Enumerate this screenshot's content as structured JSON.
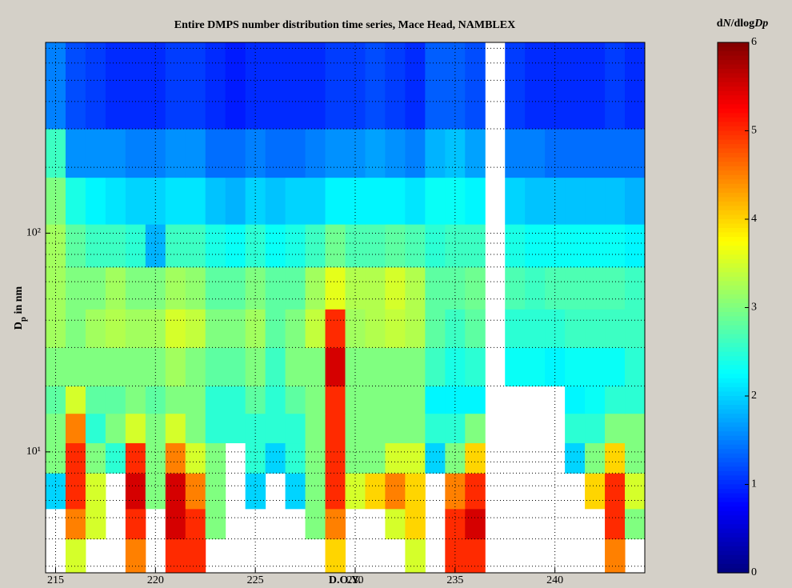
{
  "chart_data": {
    "type": "heatmap",
    "title": "Entire DMPS number distribution time series, Mace Head, NAMBLEX",
    "xlabel": "D.O.Y.",
    "ylabel": [
      "D",
      "p",
      " in nm"
    ],
    "colorbar_label": [
      "d",
      "N",
      "/dlog",
      "Dp"
    ],
    "x": [
      215,
      216,
      217,
      218,
      219,
      220,
      221,
      222,
      223,
      224,
      225,
      226,
      227,
      228,
      229,
      230,
      231,
      232,
      233,
      234,
      235,
      236,
      237,
      238,
      239,
      240,
      241,
      242,
      243,
      244
    ],
    "y_edges": [
      2.8,
      4,
      5.5,
      8,
      11,
      15,
      20,
      30,
      45,
      70,
      110,
      180,
      300,
      745
    ],
    "values": [
      [
        null,
        3.5,
        null,
        null,
        4.5,
        null,
        5,
        5,
        null,
        null,
        null,
        null,
        null,
        null,
        4,
        null,
        null,
        null,
        3.5,
        null,
        5,
        5,
        null,
        null,
        null,
        null,
        null,
        null,
        4.5,
        null
      ],
      [
        null,
        4.5,
        3.5,
        null,
        5,
        null,
        5.5,
        5,
        3,
        null,
        null,
        null,
        null,
        3,
        4.5,
        null,
        null,
        3.5,
        4,
        null,
        5,
        5.5,
        null,
        null,
        null,
        null,
        null,
        null,
        5,
        3
      ],
      [
        2,
        5,
        3.5,
        null,
        5.5,
        3,
        5.5,
        4.5,
        3,
        null,
        2,
        null,
        2,
        3,
        5,
        3.5,
        4,
        4.5,
        4,
        null,
        4.5,
        5,
        null,
        null,
        null,
        null,
        null,
        4,
        5,
        3.5
      ],
      [
        3,
        5,
        3,
        2.5,
        5,
        3,
        4.5,
        3.5,
        3,
        null,
        2.5,
        2,
        2.5,
        3,
        5,
        3,
        3,
        3.5,
        3.5,
        2,
        3,
        4,
        null,
        null,
        null,
        null,
        2,
        3,
        4,
        3
      ],
      [
        3,
        4.5,
        2.5,
        3,
        3.5,
        3,
        3.5,
        3,
        2.5,
        2.5,
        2.5,
        2.5,
        2.5,
        3,
        5,
        3,
        3,
        3,
        3,
        2.5,
        2.5,
        3,
        null,
        null,
        null,
        null,
        2.5,
        2.5,
        3,
        3
      ],
      [
        2.8,
        3.5,
        2.8,
        2.8,
        3,
        2.8,
        3,
        3,
        2.5,
        2.5,
        2.8,
        2.5,
        2.8,
        3,
        5,
        3,
        3,
        3,
        3,
        2.2,
        2.2,
        2.2,
        null,
        null,
        null,
        null,
        2.2,
        2.3,
        2.5,
        2.5
      ],
      [
        3,
        3,
        3,
        3,
        3,
        3,
        3.2,
        3,
        2.8,
        2.8,
        3,
        2.6,
        3,
        3,
        5.5,
        3,
        3,
        3,
        3,
        2.6,
        2.4,
        2.5,
        null,
        2.3,
        2.3,
        2.2,
        2.3,
        2.3,
        2.3,
        2.5
      ],
      [
        3.2,
        3,
        3.2,
        3.3,
        3.2,
        3.2,
        3.5,
        3.4,
        3,
        3,
        3.2,
        2.8,
        3,
        3.4,
        5,
        3.2,
        3.3,
        3.4,
        3.3,
        2.8,
        2.6,
        2.8,
        null,
        2.5,
        2.5,
        2.5,
        2.6,
        2.6,
        2.6,
        2.6
      ],
      [
        3.2,
        3,
        3,
        3.2,
        3,
        3,
        3.2,
        3.1,
        2.8,
        2.8,
        3,
        2.8,
        2.8,
        3.2,
        3.6,
        3.3,
        3.3,
        3.5,
        3.3,
        2.8,
        2.8,
        2.9,
        null,
        2.7,
        2.6,
        2.7,
        2.7,
        2.7,
        2.7,
        2.6
      ],
      [
        3.2,
        2.8,
        2.6,
        2.6,
        2.5,
        1.8,
        2.6,
        2.6,
        2.4,
        2.3,
        2.5,
        2.3,
        2.4,
        2.6,
        2.9,
        2.7,
        2.7,
        2.8,
        2.7,
        2.5,
        2.6,
        2.6,
        null,
        2.4,
        2.3,
        2.3,
        2.3,
        2.3,
        2.3,
        2.2
      ],
      [
        3,
        2.4,
        2.2,
        2.1,
        2,
        2,
        2.1,
        2.1,
        1.9,
        1.8,
        2,
        1.9,
        2,
        2,
        2.2,
        2.2,
        2.2,
        2.2,
        2.1,
        2.3,
        2.3,
        2.2,
        null,
        2,
        1.9,
        1.9,
        1.9,
        1.9,
        1.9,
        1.8
      ],
      [
        2.6,
        1.6,
        1.6,
        1.6,
        1.5,
        1.5,
        1.6,
        1.6,
        1.4,
        1.4,
        1.5,
        1.4,
        1.4,
        1.5,
        1.6,
        1.6,
        1.7,
        1.6,
        1.5,
        1.8,
        1.9,
        1.7,
        null,
        1.5,
        1.5,
        1.4,
        1.4,
        1.4,
        1.4,
        1.4
      ],
      [
        1.5,
        1.2,
        1.1,
        1,
        1,
        1,
        1.1,
        1.1,
        1,
        0.9,
        1,
        1,
        1,
        1,
        1.1,
        1.1,
        1.2,
        1.1,
        1,
        1.3,
        1.3,
        1.2,
        null,
        1.1,
        1,
        1,
        1,
        1,
        1.1,
        1
      ]
    ],
    "xlim": [
      214.5,
      244.5
    ],
    "xticks": [
      215,
      220,
      225,
      230,
      235,
      240
    ],
    "ylim": [
      2.8,
      745
    ],
    "log_y": true,
    "yticks": [
      {
        "value": 10,
        "label": "10¹"
      },
      {
        "value": 100,
        "label": "10²"
      }
    ],
    "minor_yticks": [
      3,
      4,
      5,
      6,
      7,
      8,
      9,
      20,
      30,
      40,
      50,
      60,
      70,
      80,
      90,
      200,
      300,
      400,
      500,
      600,
      700
    ],
    "grid": true,
    "colormap": "jet",
    "clim": [
      0,
      6
    ],
    "cticks": [
      0,
      1,
      2,
      3,
      4,
      5,
      6
    ]
  }
}
